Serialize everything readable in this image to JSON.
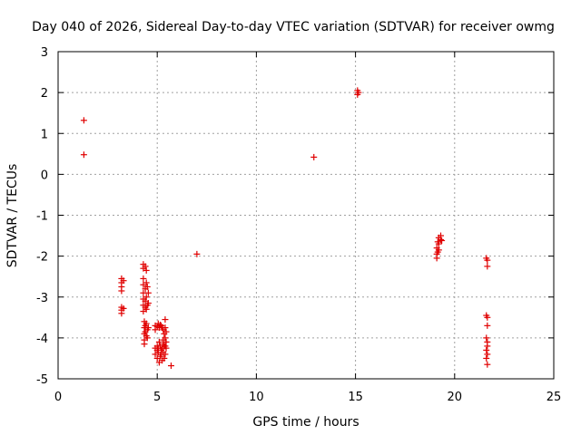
{
  "chart_data": {
    "type": "scatter",
    "title": "Day 040 of 2026, Sidereal Day-to-day VTEC variation (SDTVAR) for receiver owmg",
    "xlabel": "GPS time / hours",
    "ylabel": "SDTVAR / TECUs",
    "xlim": [
      0,
      25
    ],
    "ylim": [
      -5,
      3
    ],
    "xticks": [
      0,
      5,
      10,
      15,
      20,
      25
    ],
    "yticks": [
      -5,
      -4,
      -3,
      -2,
      -1,
      0,
      1,
      2,
      3
    ],
    "grid": true,
    "marker": "+",
    "series_color": "#e00000",
    "series": [
      {
        "name": "SDTVAR",
        "points": [
          [
            1.3,
            1.32
          ],
          [
            1.3,
            0.48
          ],
          [
            3.2,
            -2.55
          ],
          [
            3.2,
            -2.65
          ],
          [
            3.2,
            -2.75
          ],
          [
            3.2,
            -2.85
          ],
          [
            3.2,
            -3.25
          ],
          [
            3.2,
            -3.32
          ],
          [
            3.2,
            -3.4
          ],
          [
            3.3,
            -2.6
          ],
          [
            3.3,
            -3.28
          ],
          [
            4.3,
            -2.2
          ],
          [
            4.3,
            -2.3
          ],
          [
            4.3,
            -2.55
          ],
          [
            4.3,
            -2.7
          ],
          [
            4.3,
            -2.9
          ],
          [
            4.3,
            -3.05
          ],
          [
            4.3,
            -3.2
          ],
          [
            4.3,
            -3.35
          ],
          [
            4.35,
            -3.6
          ],
          [
            4.35,
            -3.75
          ],
          [
            4.35,
            -3.9
          ],
          [
            4.35,
            -4.05
          ],
          [
            4.35,
            -4.15
          ],
          [
            4.4,
            -2.25
          ],
          [
            4.4,
            -2.8
          ],
          [
            4.4,
            -3.1
          ],
          [
            4.4,
            -3.25
          ],
          [
            4.4,
            -3.7
          ],
          [
            4.4,
            -3.85
          ],
          [
            4.45,
            -2.35
          ],
          [
            4.45,
            -2.65
          ],
          [
            4.45,
            -3.0
          ],
          [
            4.45,
            -3.3
          ],
          [
            4.45,
            -3.65
          ],
          [
            4.45,
            -3.95
          ],
          [
            4.5,
            -2.75
          ],
          [
            4.5,
            -3.2
          ],
          [
            4.5,
            -3.8
          ],
          [
            4.5,
            -4.0
          ],
          [
            4.55,
            -2.9
          ],
          [
            4.55,
            -3.15
          ],
          [
            4.55,
            -3.75
          ],
          [
            4.9,
            -3.7
          ],
          [
            4.9,
            -3.8
          ],
          [
            4.9,
            -4.25
          ],
          [
            4.9,
            -4.4
          ],
          [
            5.0,
            -3.72
          ],
          [
            5.0,
            -4.2
          ],
          [
            5.0,
            -4.3
          ],
          [
            5.0,
            -4.5
          ],
          [
            5.05,
            -3.65
          ],
          [
            5.05,
            -4.25
          ],
          [
            5.05,
            -4.35
          ],
          [
            5.1,
            -3.75
          ],
          [
            5.1,
            -4.1
          ],
          [
            5.1,
            -4.6
          ],
          [
            5.15,
            -3.68
          ],
          [
            5.15,
            -4.2
          ],
          [
            5.15,
            -4.45
          ],
          [
            5.2,
            -3.7
          ],
          [
            5.2,
            -4.3
          ],
          [
            5.2,
            -4.4
          ],
          [
            5.25,
            -3.75
          ],
          [
            5.25,
            -4.25
          ],
          [
            5.25,
            -4.55
          ],
          [
            5.3,
            -3.8
          ],
          [
            5.3,
            -4.05
          ],
          [
            5.3,
            -4.15
          ],
          [
            5.3,
            -4.35
          ],
          [
            5.35,
            -3.9
          ],
          [
            5.35,
            -4.2
          ],
          [
            5.35,
            -4.5
          ],
          [
            5.4,
            -3.55
          ],
          [
            5.4,
            -3.75
          ],
          [
            5.4,
            -4.0
          ],
          [
            5.4,
            -4.2
          ],
          [
            5.4,
            -4.4
          ],
          [
            5.45,
            -3.85
          ],
          [
            5.45,
            -4.1
          ],
          [
            5.45,
            -4.25
          ],
          [
            5.7,
            -4.68
          ],
          [
            7.0,
            -1.95
          ],
          [
            12.9,
            0.42
          ],
          [
            15.1,
            1.95
          ],
          [
            15.1,
            2.05
          ],
          [
            15.15,
            2.0
          ],
          [
            19.1,
            -1.8
          ],
          [
            19.1,
            -1.95
          ],
          [
            19.1,
            -2.05
          ],
          [
            19.15,
            -1.65
          ],
          [
            19.15,
            -1.9
          ],
          [
            19.2,
            -1.55
          ],
          [
            19.2,
            -1.7
          ],
          [
            19.2,
            -1.85
          ],
          [
            19.3,
            -1.5
          ],
          [
            19.3,
            -1.6
          ],
          [
            19.35,
            -1.62
          ],
          [
            21.6,
            -2.05
          ],
          [
            21.6,
            -3.45
          ],
          [
            21.6,
            -4.0
          ],
          [
            21.6,
            -4.3
          ],
          [
            21.6,
            -4.5
          ],
          [
            21.65,
            -2.1
          ],
          [
            21.65,
            -2.25
          ],
          [
            21.65,
            -3.5
          ],
          [
            21.65,
            -3.7
          ],
          [
            21.65,
            -4.1
          ],
          [
            21.65,
            -4.2
          ],
          [
            21.65,
            -4.4
          ],
          [
            21.65,
            -4.65
          ]
        ]
      }
    ]
  }
}
